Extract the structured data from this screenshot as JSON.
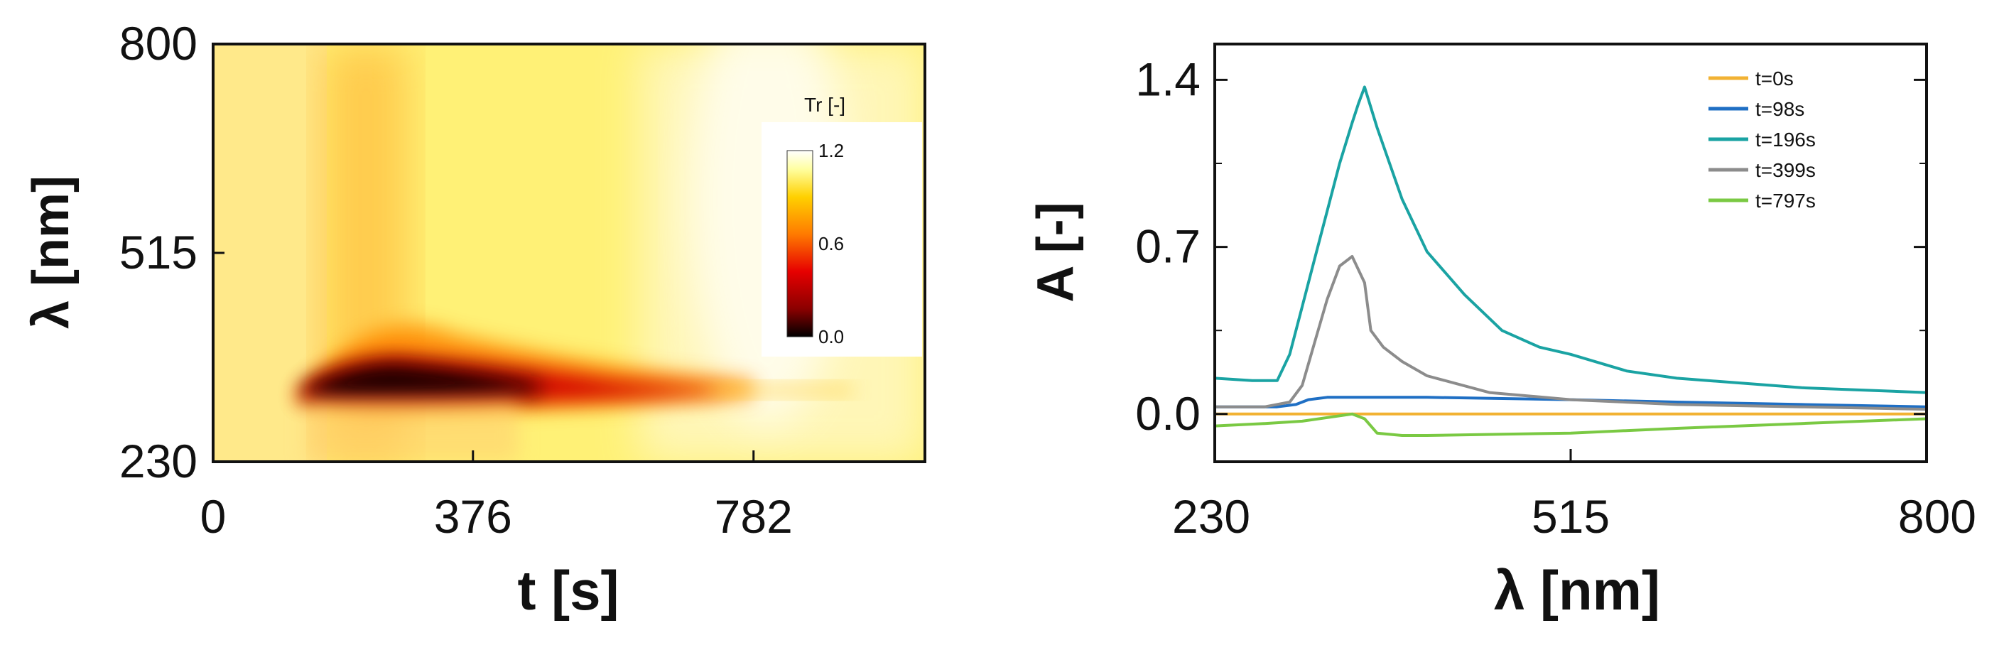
{
  "chart_data": [
    {
      "type": "heatmap",
      "title": "",
      "xlabel": "t [s]",
      "ylabel": "λ [nm]",
      "x_tick_labels": [
        "0",
        "376",
        "782"
      ],
      "x_tick_values": [
        0,
        376,
        782
      ],
      "xlim": [
        0,
        1030
      ],
      "y_tick_labels": [
        "230",
        "515",
        "800"
      ],
      "y_tick_values": [
        230,
        515,
        800
      ],
      "ylim": [
        230,
        800
      ],
      "colorbar": {
        "title": "Tr [-]",
        "tick_labels": [
          "1.2",
          "0.6",
          "0.0"
        ],
        "range": [
          0.0,
          1.2
        ],
        "colors": [
          "#000000",
          "#8b0000",
          "#e60000",
          "#ff7a00",
          "#ffd000",
          "#ffffa0",
          "#ffffff"
        ]
      },
      "features": {
        "absorption_band_center_nm": 355,
        "band_onset_s": 110,
        "minimum_transmittance_time_s": 230,
        "minimum_transmittance": 0.0
      }
    },
    {
      "type": "line",
      "title": "",
      "xlabel": "λ [nm]",
      "ylabel": "A [-]",
      "x_tick_labels": [
        "230",
        "515",
        "800"
      ],
      "x_tick_values": [
        230,
        515,
        800
      ],
      "xlim": [
        230,
        800
      ],
      "y_tick_labels": [
        "0.0",
        "0.7",
        "1.4"
      ],
      "y_tick_values": [
        0.0,
        0.7,
        1.4
      ],
      "ylim": [
        -0.2,
        1.55
      ],
      "legend_position": "top-right",
      "series": [
        {
          "name": "t=0s",
          "color": "#f2b233",
          "x": [
            230,
            280,
            300,
            340,
            400,
            515,
            600,
            700,
            800
          ],
          "y": [
            0.0,
            0.0,
            0.0,
            0.0,
            0.0,
            0.0,
            0.0,
            0.0,
            0.0
          ]
        },
        {
          "name": "t=98s",
          "color": "#1f6fc4",
          "x": [
            230,
            280,
            295,
            305,
            320,
            340,
            400,
            515,
            600,
            700,
            800
          ],
          "y": [
            0.03,
            0.03,
            0.04,
            0.06,
            0.07,
            0.07,
            0.07,
            0.06,
            0.05,
            0.04,
            0.03
          ]
        },
        {
          "name": "t=196s",
          "color": "#1aa3a3",
          "x": [
            230,
            260,
            280,
            290,
            300,
            310,
            320,
            330,
            340,
            345,
            350,
            360,
            380,
            400,
            430,
            460,
            490,
            515,
            560,
            600,
            700,
            800
          ],
          "y": [
            0.15,
            0.14,
            0.14,
            0.25,
            0.45,
            0.65,
            0.85,
            1.05,
            1.22,
            1.3,
            1.37,
            1.2,
            0.9,
            0.68,
            0.5,
            0.35,
            0.28,
            0.25,
            0.18,
            0.15,
            0.11,
            0.09
          ]
        },
        {
          "name": "t=399s",
          "color": "#8c8c8c",
          "x": [
            230,
            270,
            290,
            300,
            310,
            320,
            330,
            340,
            350,
            355,
            365,
            380,
            400,
            450,
            515,
            600,
            700,
            800
          ],
          "y": [
            0.03,
            0.03,
            0.05,
            0.12,
            0.3,
            0.48,
            0.62,
            0.66,
            0.55,
            0.35,
            0.28,
            0.22,
            0.16,
            0.09,
            0.06,
            0.04,
            0.03,
            0.02
          ]
        },
        {
          "name": "t=797s",
          "color": "#7ac943",
          "x": [
            230,
            270,
            300,
            340,
            350,
            360,
            380,
            400,
            515,
            600,
            700,
            800
          ],
          "y": [
            -0.05,
            -0.04,
            -0.03,
            0.0,
            -0.02,
            -0.08,
            -0.09,
            -0.09,
            -0.08,
            -0.06,
            -0.04,
            -0.02
          ]
        }
      ]
    }
  ]
}
